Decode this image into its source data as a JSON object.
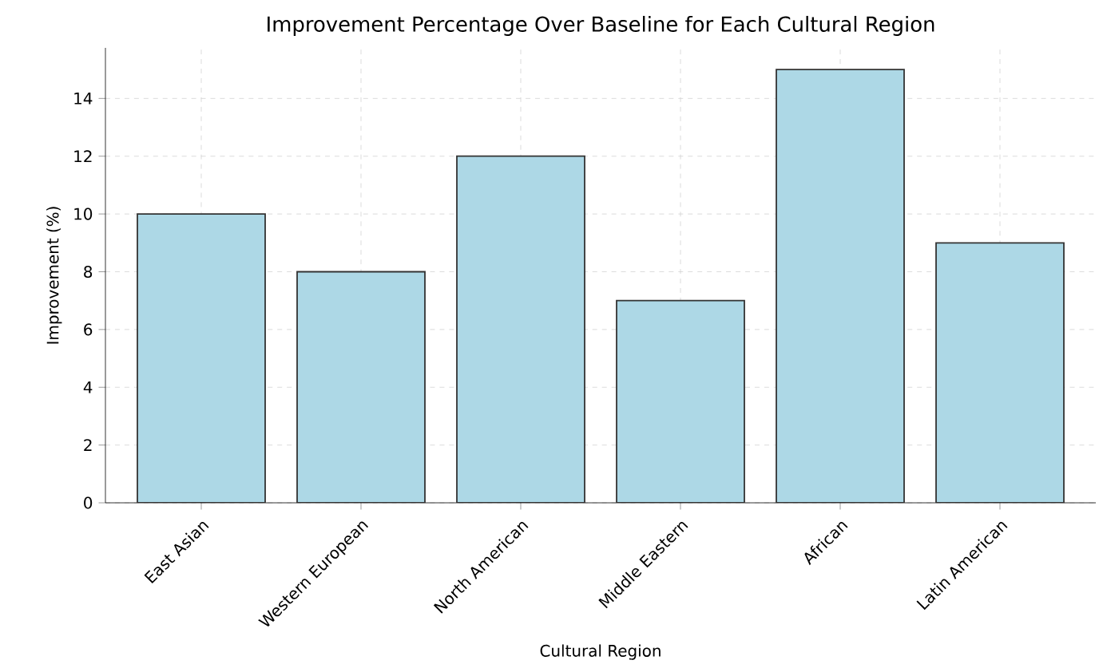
{
  "chart_data": {
    "type": "bar",
    "title": "Improvement Percentage Over Baseline for Each Cultural Region",
    "xlabel": "Cultural Region",
    "ylabel": "Improvement (%)",
    "categories": [
      "East Asian",
      "Western European",
      "North American",
      "Middle Eastern",
      "African",
      "Latin American"
    ],
    "values": [
      10,
      8,
      12,
      7,
      15,
      9
    ],
    "color": "#add8e6",
    "ylim": [
      0,
      15.75
    ],
    "yticks": [
      0,
      2,
      4,
      6,
      8,
      10,
      12,
      14
    ],
    "grid": true
  }
}
